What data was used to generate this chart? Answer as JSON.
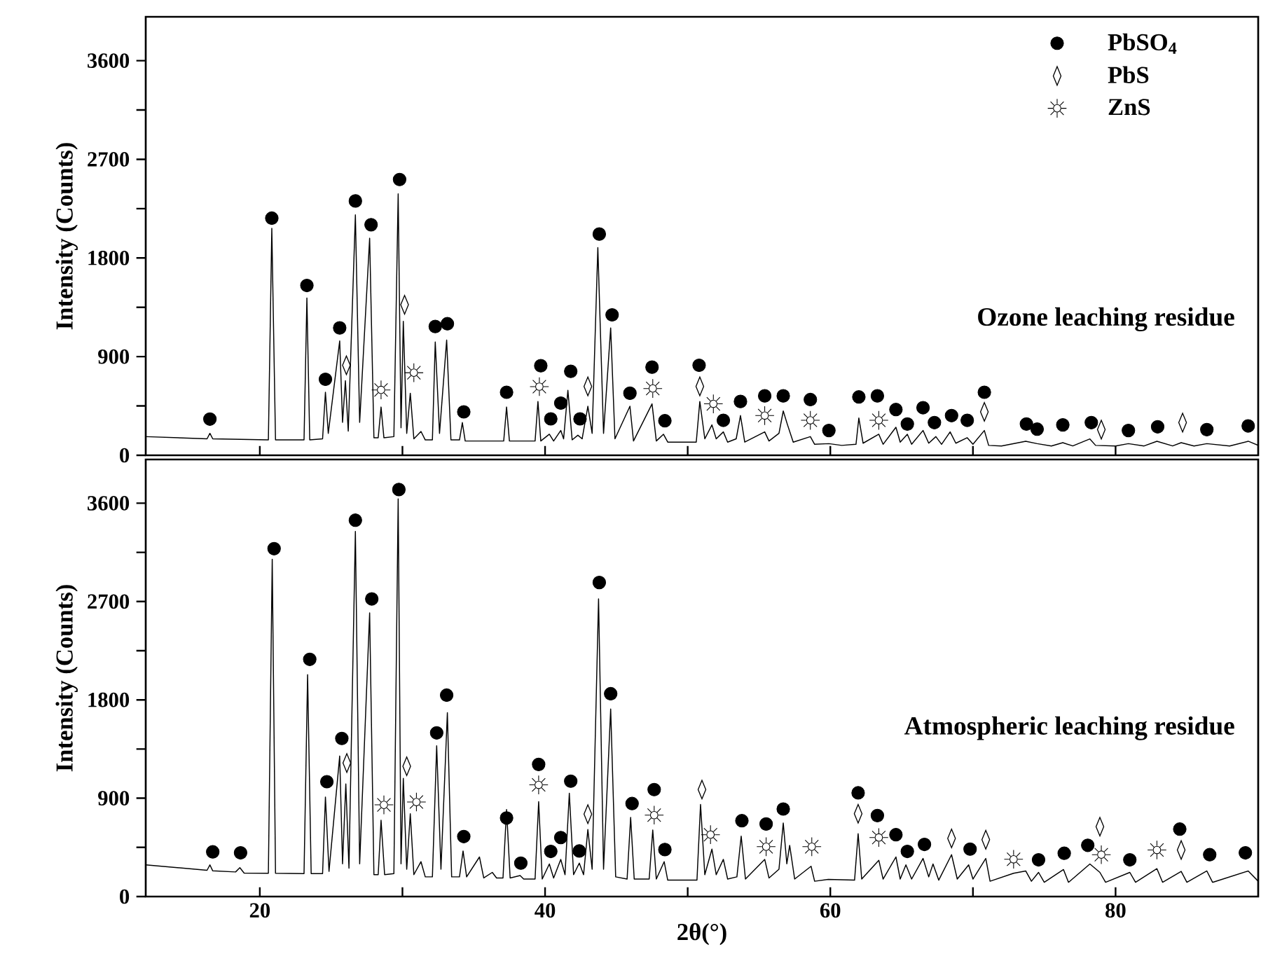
{
  "chart_data": [
    {
      "type": "line",
      "ylabel": "Intensity (Counts)",
      "xlim": [
        12,
        90
      ],
      "ylim": [
        0,
        4000
      ],
      "xticks": [
        20,
        {
          "value": 30,
          "label": null
        },
        40,
        {
          "value": 50,
          "label": null
        },
        60,
        {
          "value": 70,
          "label": null
        },
        80
      ],
      "yticks": [
        0,
        {
          "value": 450,
          "label": null
        },
        900,
        {
          "value": 1350,
          "label": null
        },
        1800,
        {
          "value": 2250,
          "label": null
        },
        2700,
        {
          "value": 3150,
          "label": null
        },
        3600
      ],
      "tick_labels": "y",
      "legend": "top right",
      "annotations": [
        "Ozone leaching residue"
      ],
      "series": [
        {
          "type": "line",
          "color": "#000000",
          "x": [
            12,
            16.3,
            16.5,
            16.7,
            20.6,
            20.84,
            21.1,
            23.1,
            23.3,
            23.5,
            24.4,
            24.6,
            24.8,
            25.6,
            25.8,
            26.0,
            26.2,
            26.7,
            27.0,
            27.7,
            28.0,
            28.3,
            28.5,
            28.7,
            29.4,
            29.7,
            29.9,
            30.06,
            30.3,
            30.55,
            30.8,
            31.3,
            31.6,
            32.1,
            32.3,
            32.6,
            33.1,
            33.4,
            34.0,
            34.2,
            34.4,
            35.5,
            37.1,
            37.3,
            37.5,
            38.5,
            39.3,
            39.5,
            39.7,
            40.3,
            40.6,
            41.1,
            41.3,
            41.6,
            41.9,
            42.3,
            42.6,
            43.0,
            43.3,
            43.7,
            44.1,
            44.6,
            44.9,
            45.95,
            46.2,
            47.5,
            47.8,
            48.3,
            48.6,
            49.5,
            50.6,
            50.85,
            51.2,
            51.7,
            52.0,
            52.5,
            52.8,
            53.4,
            53.7,
            54.0,
            55.4,
            55.7,
            56.4,
            56.7,
            57.0,
            57.4,
            58.6,
            58.9,
            59.9,
            60.8,
            61.8,
            62.0,
            62.3,
            63.4,
            63.7,
            64.6,
            64.9,
            65.4,
            65.7,
            66.5,
            66.9,
            67.4,
            67.8,
            68.4,
            68.8,
            69.6,
            70.0,
            70.8,
            71.1,
            72,
            73.7,
            74.5,
            75.5,
            76.3,
            77,
            78.2,
            78.6,
            80,
            80.9,
            82,
            82.9,
            84,
            84.6,
            85.5,
            86.4,
            88,
            89.3,
            90
          ],
          "values": [
            170,
            150,
            200,
            150,
            140,
            2070,
            140,
            140,
            1434,
            140,
            150,
            575,
            200,
            1043,
            300,
            680,
            220,
            2193,
            300,
            1980,
            160,
            160,
            440,
            160,
            170,
            2385,
            250,
            1222,
            200,
            566,
            150,
            217,
            140,
            140,
            1034,
            200,
            1051,
            140,
            140,
            298,
            130,
            130,
            130,
            440,
            130,
            130,
            130,
            491,
            130,
            192,
            130,
            226,
            150,
            592,
            140,
            183,
            150,
            447,
            200,
            1895,
            200,
            1162,
            150,
            447,
            130,
            469,
            130,
            192,
            120,
            120,
            120,
            491,
            150,
            277,
            150,
            213,
            120,
            150,
            362,
            120,
            213,
            130,
            200,
            404,
            277,
            120,
            170,
            100,
            106,
            90,
            100,
            340,
            110,
            192,
            100,
            255,
            120,
            192,
            100,
            226,
            110,
            170,
            100,
            213,
            110,
            160,
            100,
            226,
            90,
            85,
            128,
            106,
            85,
            115,
            85,
            149,
            90,
            85,
            106,
            85,
            128,
            85,
            115,
            85,
            106,
            85,
            128,
            90
          ]
        },
        {
          "type": "scatter",
          "name": "PbSO$_{4}$",
          "color": "#000000",
          "marker": "circle",
          "x": [
            16.5,
            20.84,
            23.3,
            24.6,
            25.6,
            26.7,
            27.8,
            29.8,
            32.3,
            33.15,
            34.3,
            37.3,
            39.7,
            40.4,
            41.1,
            41.8,
            42.45,
            43.8,
            44.7,
            45.95,
            47.5,
            48.4,
            50.8,
            52.5,
            53.7,
            55.4,
            56.7,
            58.6,
            59.9,
            62.0,
            63.3,
            64.6,
            65.4,
            66.5,
            67.3,
            68.5,
            69.6,
            70.8,
            73.75,
            74.5,
            76.3,
            78.3,
            80.9,
            82.95,
            86.4,
            89.3
          ],
          "values": [
            330,
            2163,
            1549,
            693,
            1162,
            2320,
            2103,
            2516,
            1175,
            1200,
            396,
            575,
            817,
            332,
            476,
            766,
            332,
            2018,
            1281,
            566,
            804,
            315,
            821,
            319,
            491,
            542,
            542,
            508,
            226,
            532,
            542,
            417,
            285,
            434,
            298,
            362,
            319,
            575,
            285,
            238,
            277,
            298,
            226,
            260,
            234,
            268
          ]
        },
        {
          "type": "scatter",
          "name": "PbS",
          "color": "#000000",
          "marker": "diamond",
          "x": [
            26.07,
            30.15,
            43.0,
            50.85,
            70.8,
            79.0,
            84.7
          ],
          "values": [
            821,
            1373,
            628,
            628,
            396,
            234,
            298
          ]
        },
        {
          "type": "scatter",
          "name": "ZnS",
          "color": "#000000",
          "marker": "cross",
          "x": [
            28.5,
            30.8,
            39.6,
            47.55,
            51.8,
            55.4,
            58.6,
            63.4
          ],
          "values": [
            596,
            753,
            626,
            609,
            469,
            362,
            319,
            319
          ]
        }
      ]
    },
    {
      "type": "line",
      "xlabel": "2θ(°)",
      "ylabel": "Intensity (Counts)",
      "xlim": [
        12,
        90
      ],
      "ylim": [
        0,
        4000
      ],
      "xticks": [
        20,
        {
          "value": 30,
          "label": null
        },
        40,
        {
          "value": 50,
          "label": null
        },
        60,
        {
          "value": 70,
          "label": null
        },
        80
      ],
      "yticks": [
        0,
        {
          "value": 450,
          "label": null
        },
        900,
        {
          "value": 1350,
          "label": null
        },
        1800,
        {
          "value": 2250,
          "label": null
        },
        2700,
        {
          "value": 3150,
          "label": null
        },
        3600
      ],
      "annotations": [
        "Atmospheric leaching residue"
      ],
      "series": [
        {
          "type": "line",
          "color": "#000000",
          "x": [
            12,
            16.3,
            16.5,
            16.7,
            18.3,
            18.6,
            18.9,
            20.6,
            20.87,
            21.1,
            23.1,
            23.35,
            23.6,
            24.4,
            24.6,
            24.85,
            25.6,
            25.8,
            26.03,
            26.25,
            26.7,
            27.0,
            27.7,
            28.0,
            28.3,
            28.5,
            28.75,
            29.4,
            29.7,
            29.9,
            30.06,
            30.3,
            30.55,
            30.8,
            31.3,
            31.6,
            32.1,
            32.4,
            32.7,
            33.15,
            33.45,
            34.0,
            34.25,
            34.5,
            35.4,
            35.7,
            36.3,
            36.6,
            37.05,
            37.3,
            37.55,
            38.25,
            38.5,
            39.3,
            39.55,
            39.8,
            40.3,
            40.6,
            41.1,
            41.4,
            41.7,
            42.0,
            42.4,
            42.7,
            43.0,
            43.3,
            43.75,
            44.1,
            44.6,
            44.95,
            45.75,
            46.0,
            46.25,
            47.3,
            47.55,
            47.8,
            48.35,
            48.6,
            50.65,
            50.9,
            51.2,
            51.7,
            52.0,
            52.5,
            52.8,
            53.45,
            53.75,
            54.05,
            55.4,
            55.7,
            56.4,
            56.7,
            56.95,
            57.15,
            57.5,
            58.65,
            58.9,
            59.85,
            61.7,
            61.95,
            62.2,
            63.4,
            63.7,
            64.6,
            64.9,
            65.3,
            65.7,
            66.5,
            66.9,
            67.2,
            67.6,
            68.5,
            68.9,
            69.7,
            70.0,
            70.9,
            71.2,
            72.85,
            73.7,
            74.1,
            74.6,
            75.0,
            76.35,
            76.7,
            78.2,
            78.9,
            79.3,
            81.0,
            81.4,
            82.9,
            83.3,
            84.6,
            85.0,
            86.4,
            86.8,
            89.3,
            90
          ],
          "values": [
            290,
            240,
            290,
            235,
            225,
            264,
            215,
            213,
            3087,
            213,
            210,
            2031,
            210,
            210,
            911,
            230,
            1286,
            300,
            1031,
            260,
            3342,
            300,
            2596,
            200,
            200,
            699,
            200,
            210,
            3640,
            300,
            1082,
            250,
            758,
            200,
            319,
            180,
            180,
            1379,
            250,
            1682,
            180,
            180,
            417,
            180,
            362,
            170,
            221,
            170,
            170,
            796,
            170,
            192,
            160,
            160,
            868,
            160,
            298,
            170,
            340,
            200,
            945,
            200,
            306,
            200,
            613,
            250,
            2724,
            250,
            1716,
            180,
            160,
            724,
            160,
            160,
            609,
            160,
            319,
            150,
            150,
            843,
            200,
            434,
            200,
            340,
            160,
            180,
            553,
            160,
            340,
            170,
            250,
            673,
            300,
            468,
            160,
            277,
            140,
            157,
            150,
            575,
            160,
            332,
            160,
            362,
            160,
            290,
            160,
            349,
            180,
            298,
            150,
            383,
            160,
            290,
            160,
            349,
            140,
            213,
            234,
            140,
            221,
            130,
            247,
            130,
            298,
            221,
            130,
            221,
            130,
            255,
            130,
            230,
            130,
            234,
            130,
            234,
            140
          ]
        },
        {
          "type": "scatter",
          "color": "#000000",
          "marker": "circle",
          "x": [
            16.7,
            18.65,
            21.0,
            23.5,
            24.7,
            25.75,
            26.7,
            27.85,
            29.75,
            32.4,
            33.1,
            34.3,
            37.3,
            38.3,
            39.55,
            40.4,
            41.1,
            41.8,
            42.4,
            43.8,
            44.6,
            46.1,
            47.65,
            48.4,
            53.8,
            55.5,
            56.7,
            61.95,
            63.3,
            64.6,
            65.4,
            66.6,
            69.8,
            74.6,
            76.4,
            78.05,
            81.0,
            84.5,
            86.6,
            89.1
          ],
          "values": [
            409,
            400,
            3184,
            2171,
            1051,
            1447,
            3444,
            2724,
            3725,
            1498,
            1843,
            549,
            719,
            306,
            1209,
            413,
            540,
            1056,
            417,
            2874,
            1856,
            851,
            979,
            430,
            694,
            664,
            801,
            949,
            741,
            566,
            413,
            477,
            434,
            336,
            396,
            469,
            336,
            617,
            383,
            400
          ]
        },
        {
          "type": "scatter",
          "color": "#000000",
          "marker": "diamond",
          "x": [
            26.1,
            30.3,
            43.0,
            51.0,
            61.95,
            68.5,
            70.9,
            78.9,
            84.6
          ],
          "values": [
            1222,
            1192,
            754,
            979,
            758,
            532,
            520,
            639,
            426
          ]
        },
        {
          "type": "scatter",
          "color": "#000000",
          "marker": "cross",
          "x": [
            28.7,
            30.98,
            39.55,
            47.65,
            51.6,
            55.5,
            58.7,
            63.4,
            72.85,
            79.0,
            82.9
          ],
          "values": [
            839,
            865,
            1022,
            745,
            566,
            456,
            456,
            540,
            341,
            383,
            426
          ]
        }
      ]
    }
  ]
}
